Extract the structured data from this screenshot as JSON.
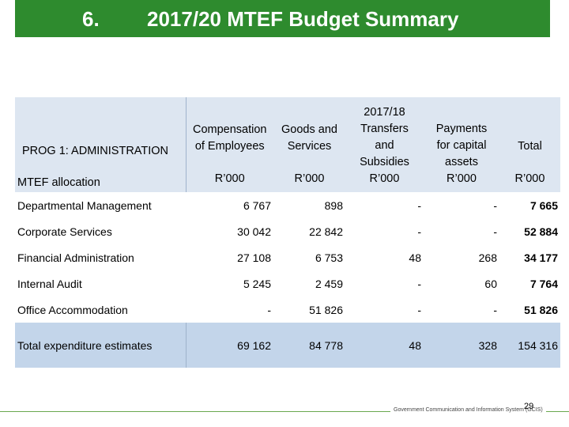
{
  "title": {
    "number": "6.",
    "text": "2017/20 MTEF Budget Summary"
  },
  "table": {
    "program_title": "PROG 1: ADMINISTRATION",
    "row_header_label": "MTEF allocation",
    "year_label": "2017/18",
    "columns": [
      {
        "line1": "Compensation",
        "line2": "of Employees",
        "unit": "R’000"
      },
      {
        "line1": "Goods and",
        "line2": "Services",
        "unit": "R’000"
      },
      {
        "line1": "Transfers",
        "line2": "and",
        "line3": "Subsidies",
        "unit": "R’000"
      },
      {
        "line1": "Payments",
        "line2": "for capital",
        "line3": "assets",
        "unit": "R’000"
      },
      {
        "line1": "Total",
        "unit": "R’000"
      }
    ],
    "rows": [
      {
        "label": "Departmental Management",
        "values": [
          "6 767",
          "898",
          "-",
          "-",
          "7 665"
        ]
      },
      {
        "label": "Corporate Services",
        "values": [
          "30 042",
          "22 842",
          "-",
          "-",
          "52 884"
        ]
      },
      {
        "label": "Financial Administration",
        "values": [
          "27 108",
          "6 753",
          "48",
          "268",
          "34 177"
        ]
      },
      {
        "label": "Internal Audit",
        "values": [
          "5 245",
          "2 459",
          "-",
          "60",
          "7 764"
        ]
      },
      {
        "label": "Office Accommodation",
        "values": [
          "-",
          "51 826",
          "-",
          "-",
          "51 826"
        ]
      }
    ],
    "total_row": {
      "label": "Total expenditure estimates",
      "values": [
        "69 162",
        "84 778",
        "48",
        "328",
        "154 316"
      ]
    }
  },
  "footer": {
    "org": "Government Communication and Information System (GCIS)",
    "page": "29"
  },
  "colors": {
    "title_bar": "#2e8b2e",
    "header_fill": "#dde6f1",
    "total_fill": "#c3d5ea"
  }
}
